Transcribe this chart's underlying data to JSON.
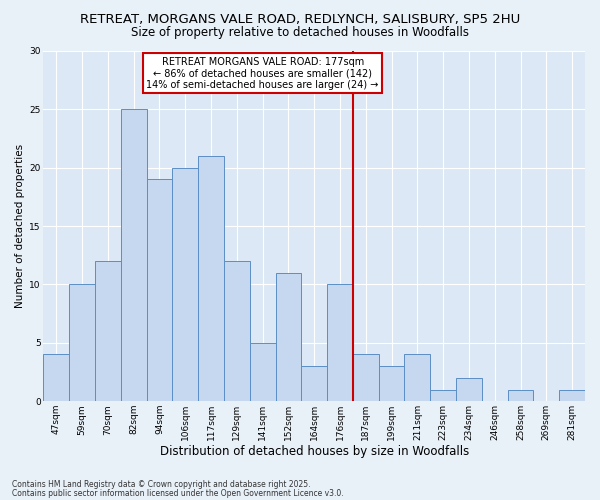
{
  "title": "RETREAT, MORGANS VALE ROAD, REDLYNCH, SALISBURY, SP5 2HU",
  "subtitle": "Size of property relative to detached houses in Woodfalls",
  "xlabel": "Distribution of detached houses by size in Woodfalls",
  "ylabel": "Number of detached properties",
  "categories": [
    "47sqm",
    "59sqm",
    "70sqm",
    "82sqm",
    "94sqm",
    "106sqm",
    "117sqm",
    "129sqm",
    "141sqm",
    "152sqm",
    "164sqm",
    "176sqm",
    "187sqm",
    "199sqm",
    "211sqm",
    "223sqm",
    "234sqm",
    "246sqm",
    "258sqm",
    "269sqm",
    "281sqm"
  ],
  "values": [
    4,
    10,
    12,
    25,
    19,
    20,
    21,
    12,
    5,
    11,
    3,
    10,
    4,
    3,
    4,
    1,
    2,
    0,
    1,
    0,
    1
  ],
  "bar_color": "#c5d8f0",
  "bar_edge_color": "#5b8ec5",
  "property_line_idx": 11,
  "property_label": "RETREAT MORGANS VALE ROAD: 177sqm",
  "annotation_line1": "← 86% of detached houses are smaller (142)",
  "annotation_line2": "14% of semi-detached houses are larger (24) →",
  "vline_color": "#cc0000",
  "annotation_box_edge": "#cc0000",
  "fig_bg_color": "#e8f0f8",
  "axes_bg_color": "#dce8f5",
  "ylim": [
    0,
    30
  ],
  "yticks": [
    0,
    5,
    10,
    15,
    20,
    25,
    30
  ],
  "footnote1": "Contains HM Land Registry data © Crown copyright and database right 2025.",
  "footnote2": "Contains public sector information licensed under the Open Government Licence v3.0.",
  "title_fontsize": 9.5,
  "subtitle_fontsize": 8.5,
  "tick_fontsize": 6.5,
  "xlabel_fontsize": 8.5,
  "ylabel_fontsize": 7.5,
  "footnote_fontsize": 5.5,
  "annot_fontsize": 7.0
}
